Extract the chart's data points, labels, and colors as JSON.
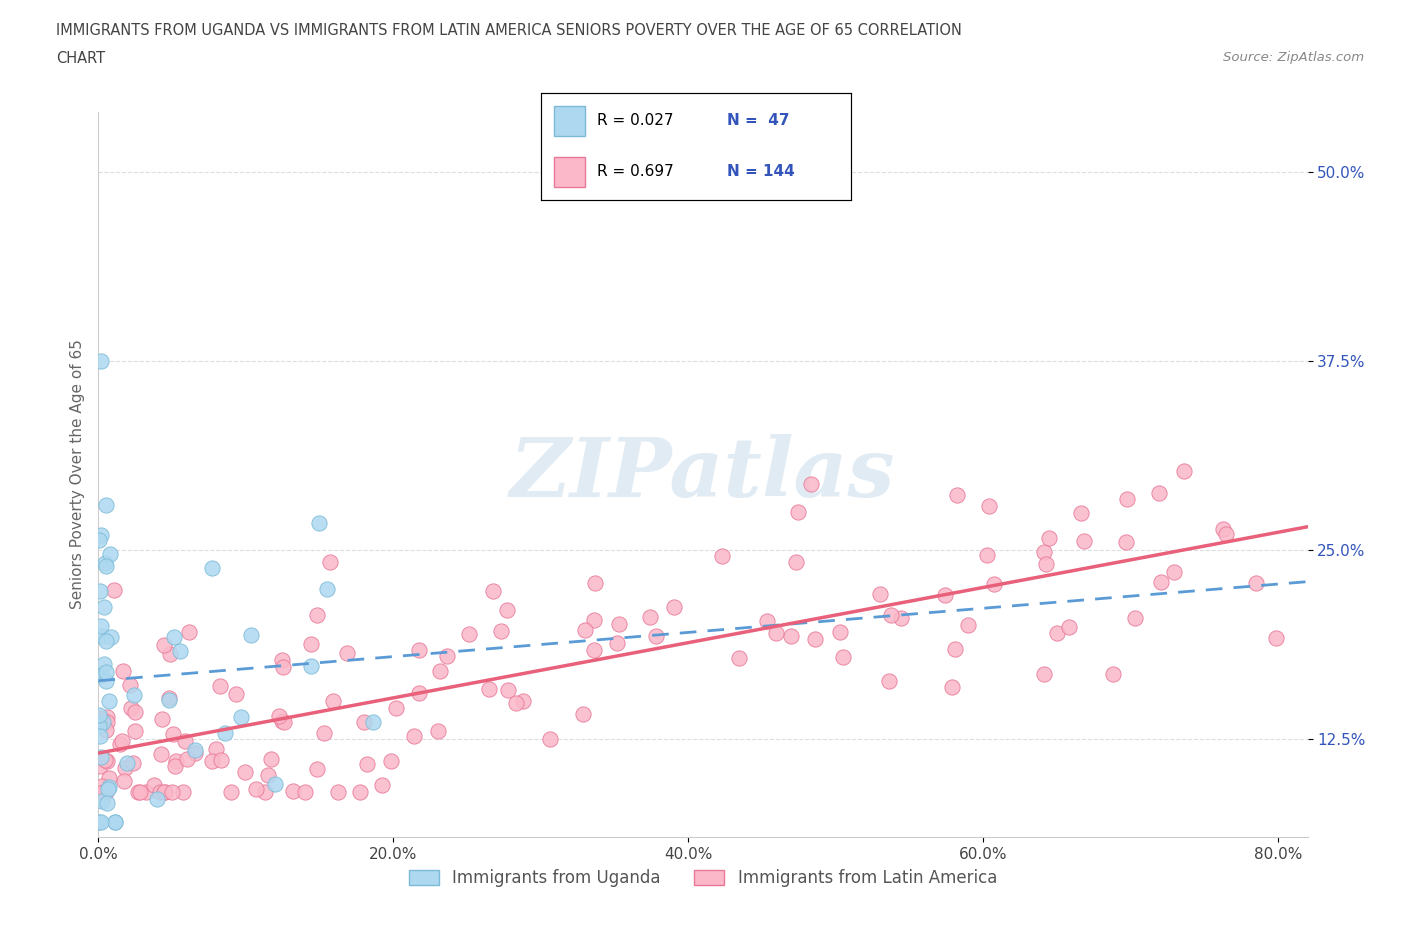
{
  "title_line1": "IMMIGRANTS FROM UGANDA VS IMMIGRANTS FROM LATIN AMERICA SENIORS POVERTY OVER THE AGE OF 65 CORRELATION",
  "title_line2": "CHART",
  "source_text": "Source: ZipAtlas.com",
  "ylabel": "Seniors Poverty Over the Age of 65",
  "xlim": [
    0.0,
    0.82
  ],
  "ylim": [
    0.06,
    0.54
  ],
  "ytick_vals": [
    0.125,
    0.25,
    0.375,
    0.5
  ],
  "ytick_labels": [
    "12.5%",
    "25.0%",
    "37.5%",
    "50.0%"
  ],
  "xtick_vals": [
    0.0,
    0.2,
    0.4,
    0.6,
    0.8
  ],
  "xtick_labels": [
    "0.0%",
    "20.0%",
    "40.0%",
    "60.0%",
    "80.0%"
  ],
  "uganda_fill_color": "#ADD8F0",
  "uganda_edge_color": "#7BBAD6",
  "latin_fill_color": "#FAB8C8",
  "latin_edge_color": "#E87898",
  "uganda_line_color": "#5B9BD5",
  "latin_line_color": "#E8607A",
  "R_uganda": 0.027,
  "N_uganda": 47,
  "R_latin": 0.697,
  "N_latin": 144,
  "watermark": "ZIPatlas",
  "legend_label_uganda": "Immigrants from Uganda",
  "legend_label_latin": "Immigrants from Latin America",
  "legend_text_color": "#3355BB",
  "title_color": "#444444",
  "axis_label_color": "#666666",
  "tick_color": "#444444",
  "source_color": "#888888",
  "grid_color": "#DDDDDD"
}
